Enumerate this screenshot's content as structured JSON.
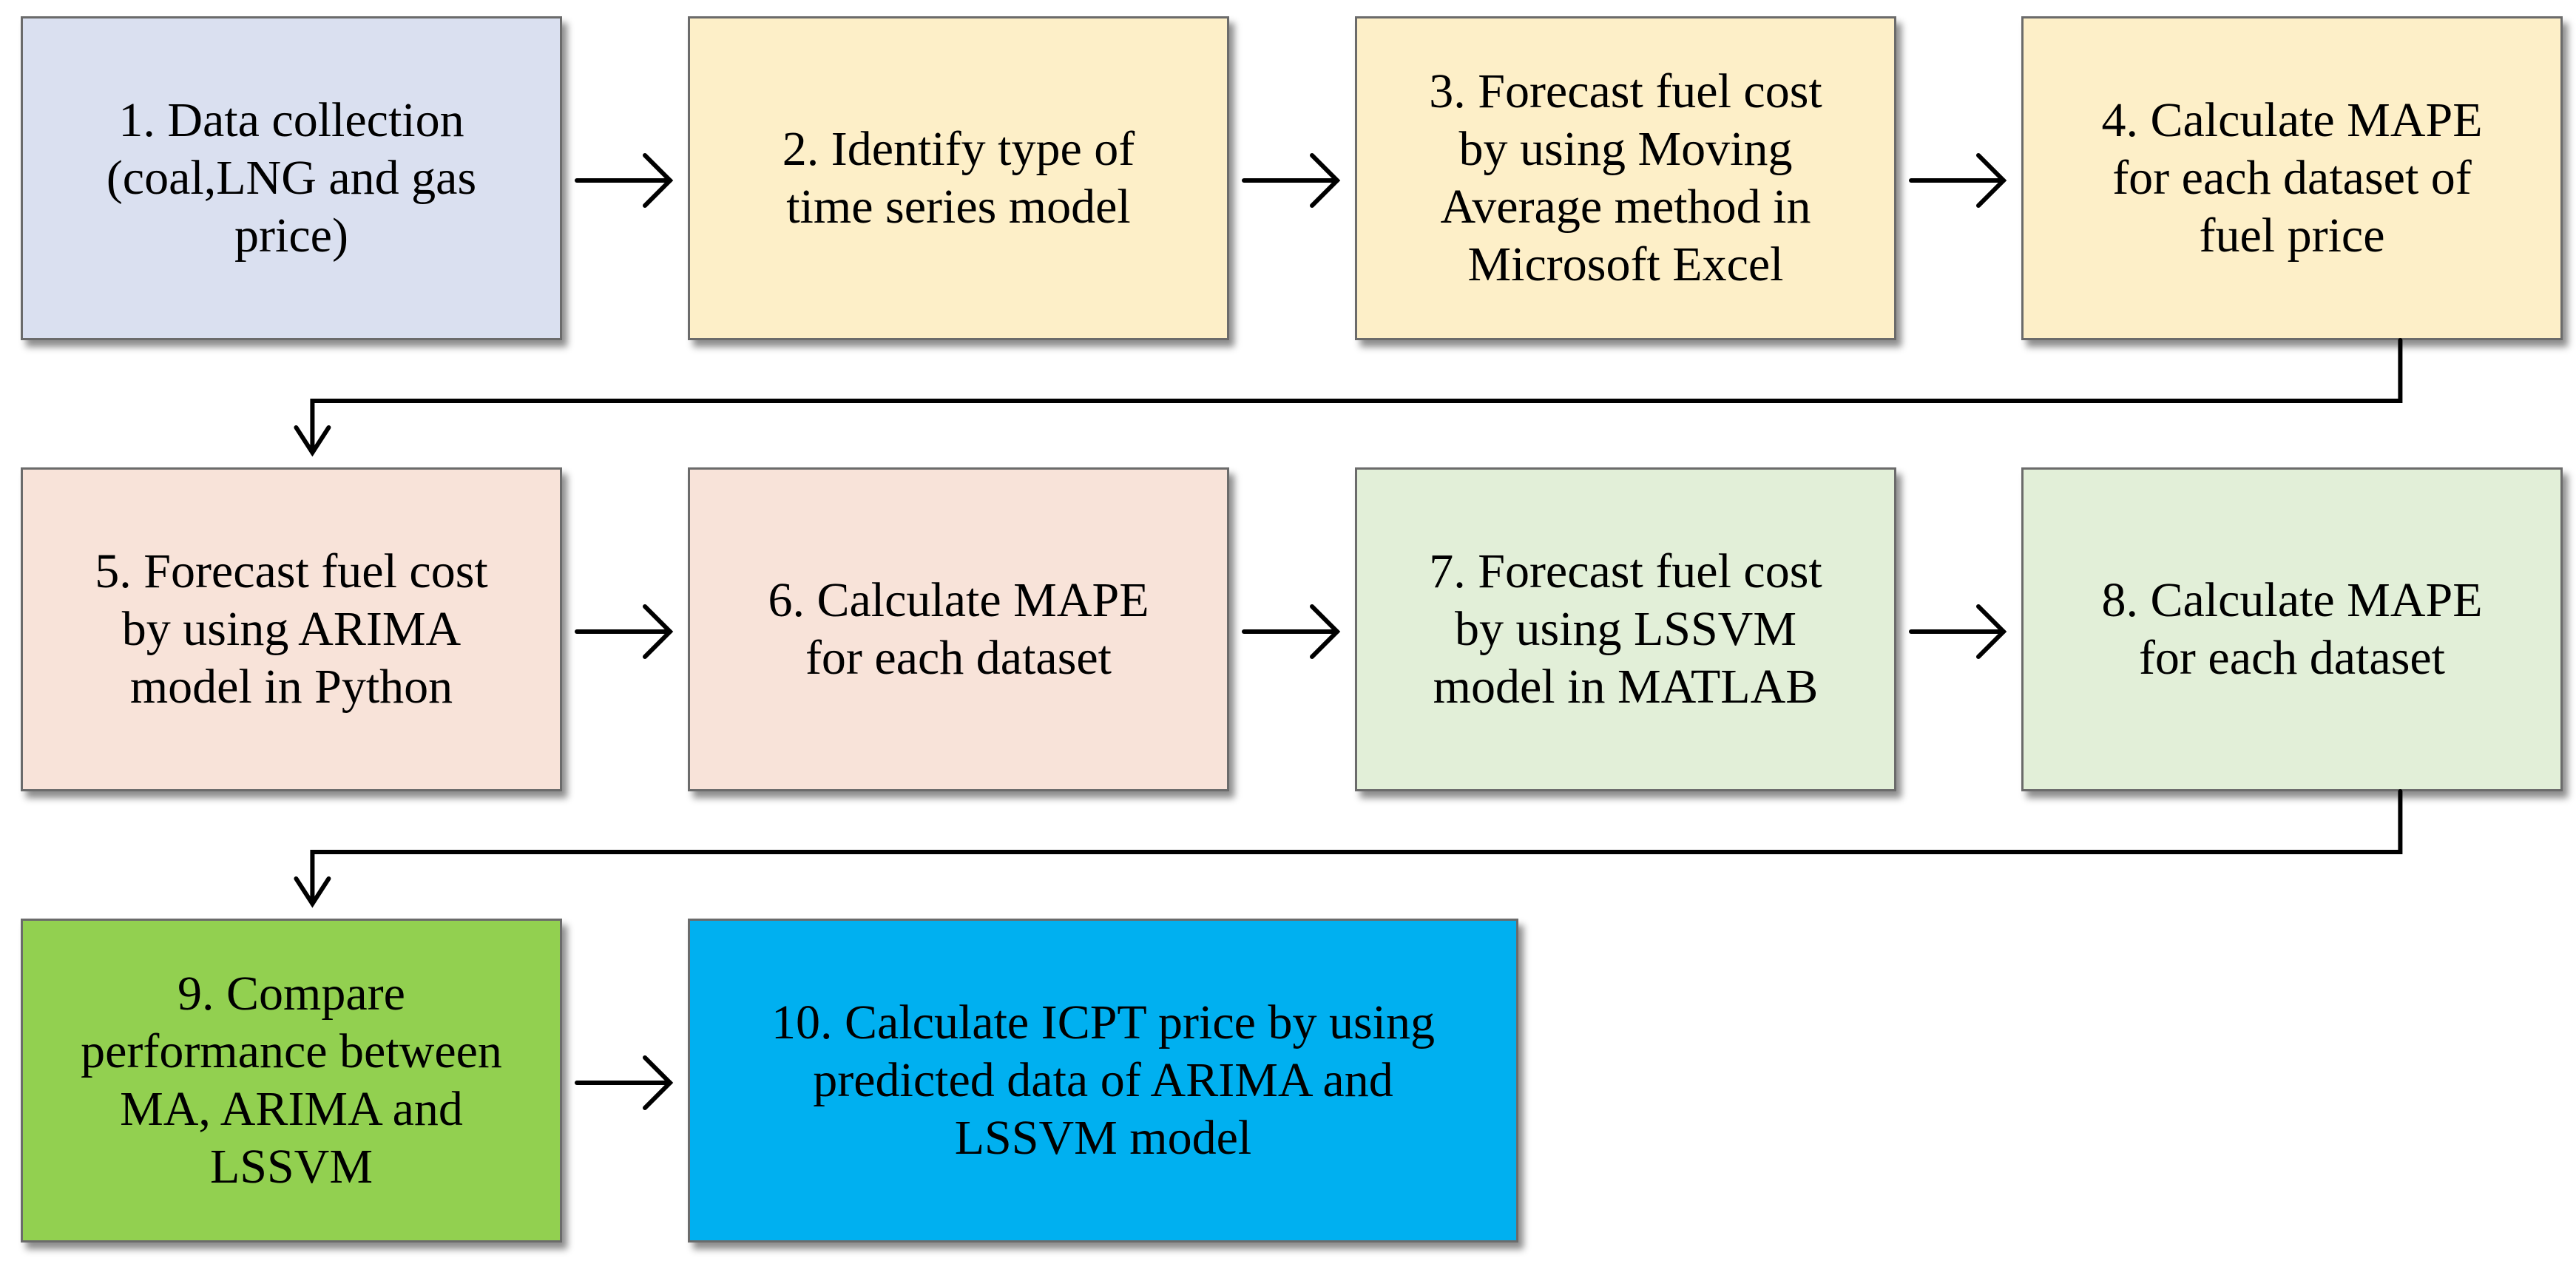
{
  "steps": [
    {
      "id": 1,
      "label": "1. Data collection\n(coal,LNG and gas\nprice)",
      "fill": "#dae0f0"
    },
    {
      "id": 2,
      "label": "2. Identify type of\ntime series model",
      "fill": "#fdefc8"
    },
    {
      "id": 3,
      "label": "3. Forecast fuel cost\nby using Moving\nAverage method in\nMicrosoft Excel",
      "fill": "#fdefc8"
    },
    {
      "id": 4,
      "label": "4. Calculate MAPE\nfor each dataset of\nfuel price",
      "fill": "#fdefc8"
    },
    {
      "id": 5,
      "label": "5.  Forecast fuel cost\nby using ARIMA\nmodel in Python",
      "fill": "#f8e3d9"
    },
    {
      "id": 6,
      "label": "6. Calculate MAPE\nfor each dataset",
      "fill": "#f8e3d9"
    },
    {
      "id": 7,
      "label": "7. Forecast fuel cost\nby using LSSVM\nmodel in MATLAB",
      "fill": "#e2efd8"
    },
    {
      "id": 8,
      "label": "8. Calculate MAPE\nfor each dataset",
      "fill": "#e2efd8"
    },
    {
      "id": 9,
      "label": "9. Compare\nperformance between\nMA, ARIMA and\nLSSVM",
      "fill": "#92d050"
    },
    {
      "id": 10,
      "label": "10. Calculate ICPT price by using\npredicted data of ARIMA and\nLSSVM model",
      "fill": "#00b0f0"
    }
  ],
  "connections": [
    {
      "from": 1,
      "to": 2
    },
    {
      "from": 2,
      "to": 3
    },
    {
      "from": 3,
      "to": 4
    },
    {
      "from": 4,
      "to": 5
    },
    {
      "from": 5,
      "to": 6
    },
    {
      "from": 6,
      "to": 7
    },
    {
      "from": 7,
      "to": 8
    },
    {
      "from": 8,
      "to": 9
    },
    {
      "from": 9,
      "to": 10
    }
  ]
}
